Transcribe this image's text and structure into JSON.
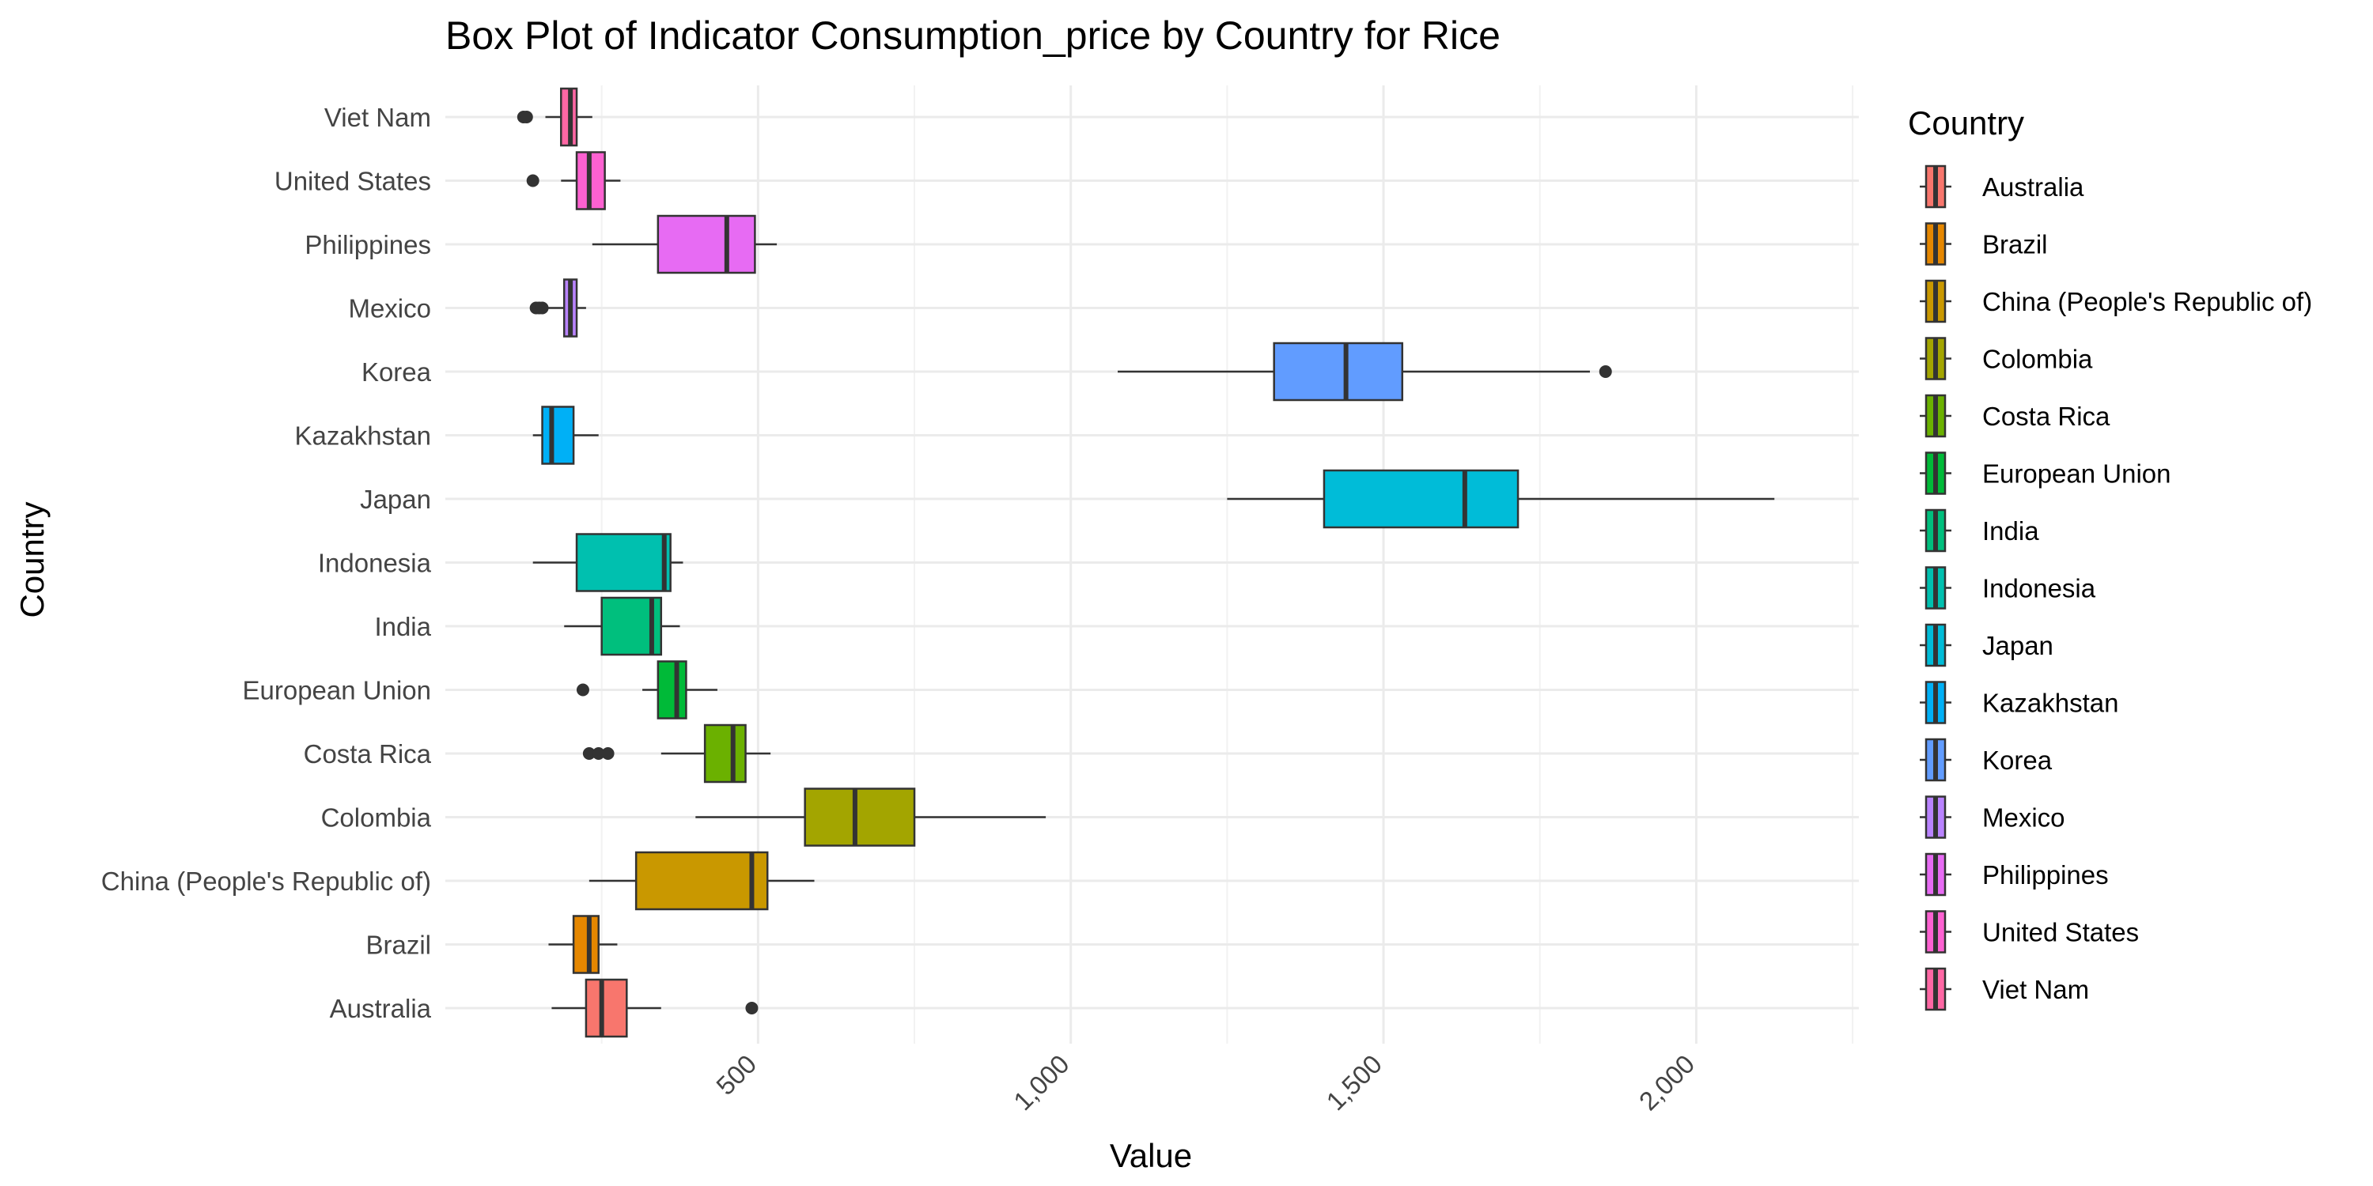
{
  "chart_data": {
    "type": "boxplot",
    "title": "Box Plot of Indicator Consumption_price by Country for Rice",
    "xlabel": "Value",
    "ylabel": "Country",
    "xlim": [
      0,
      2260
    ],
    "x_ticks": [
      500,
      1000,
      1500,
      2000
    ],
    "x_tick_labels": [
      "500",
      "1,000",
      "1,500",
      "2,000"
    ],
    "grid": true,
    "legend_title": "Country",
    "legend_position": "right",
    "series": [
      {
        "name": "Australia",
        "color": "#F8766D",
        "whisker_low": 170,
        "q1": 225,
        "median": 250,
        "q3": 290,
        "whisker_high": 345,
        "outliers": [
          490
        ]
      },
      {
        "name": "Brazil",
        "color": "#E58700",
        "whisker_low": 165,
        "q1": 205,
        "median": 230,
        "q3": 245,
        "whisker_high": 275,
        "outliers": []
      },
      {
        "name": "China (People's Republic of)",
        "color": "#C99800",
        "whisker_low": 230,
        "q1": 305,
        "median": 490,
        "q3": 515,
        "whisker_high": 590,
        "outliers": []
      },
      {
        "name": "Colombia",
        "color": "#A3A500",
        "whisker_low": 400,
        "q1": 575,
        "median": 655,
        "q3": 750,
        "whisker_high": 960,
        "outliers": []
      },
      {
        "name": "Costa Rica",
        "color": "#6BB100",
        "whisker_low": 345,
        "q1": 415,
        "median": 460,
        "q3": 480,
        "whisker_high": 520,
        "outliers": [
          230,
          245,
          260
        ]
      },
      {
        "name": "European Union",
        "color": "#00BA38",
        "whisker_low": 315,
        "q1": 340,
        "median": 370,
        "q3": 385,
        "whisker_high": 435,
        "outliers": [
          220
        ]
      },
      {
        "name": "India",
        "color": "#00BF7D",
        "whisker_low": 190,
        "q1": 250,
        "median": 330,
        "q3": 345,
        "whisker_high": 375,
        "outliers": []
      },
      {
        "name": "Indonesia",
        "color": "#00C0AF",
        "whisker_low": 140,
        "q1": 210,
        "median": 350,
        "q3": 360,
        "whisker_high": 380,
        "outliers": []
      },
      {
        "name": "Japan",
        "color": "#00BCD8",
        "whisker_low": 1250,
        "q1": 1405,
        "median": 1630,
        "q3": 1715,
        "whisker_high": 2125,
        "outliers": []
      },
      {
        "name": "Kazakhstan",
        "color": "#00B0F6",
        "whisker_low": 140,
        "q1": 155,
        "median": 170,
        "q3": 205,
        "whisker_high": 245,
        "outliers": []
      },
      {
        "name": "Korea",
        "color": "#619CFF",
        "whisker_low": 1075,
        "q1": 1325,
        "median": 1440,
        "q3": 1530,
        "whisker_high": 1830,
        "outliers": [
          1855
        ]
      },
      {
        "name": "Mexico",
        "color": "#B983FF",
        "whisker_low": 165,
        "q1": 190,
        "median": 200,
        "q3": 210,
        "whisker_high": 225,
        "outliers": [
          145,
          150,
          155
        ]
      },
      {
        "name": "Philippines",
        "color": "#E76BF3",
        "whisker_low": 235,
        "q1": 340,
        "median": 450,
        "q3": 495,
        "whisker_high": 530,
        "outliers": []
      },
      {
        "name": "United States",
        "color": "#FD61D1",
        "whisker_low": 185,
        "q1": 210,
        "median": 230,
        "q3": 255,
        "whisker_high": 280,
        "outliers": [
          140
        ]
      },
      {
        "name": "Viet Nam",
        "color": "#FF67A4",
        "whisker_low": 160,
        "q1": 185,
        "median": 200,
        "q3": 210,
        "whisker_high": 235,
        "outliers": [
          125,
          130
        ]
      }
    ]
  }
}
